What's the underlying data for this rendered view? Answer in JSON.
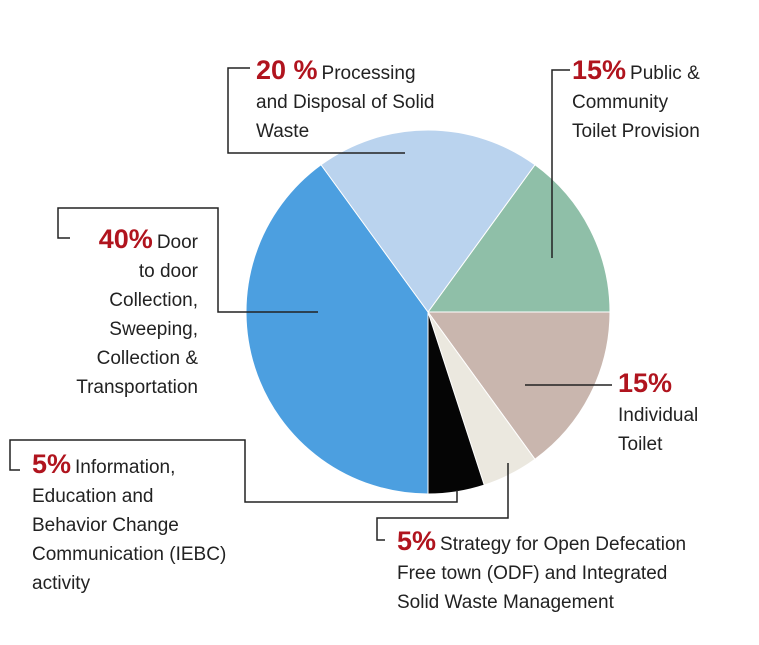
{
  "chart_data": {
    "type": "pie",
    "start": "top, clockwise from Public & Community Toilet Provision",
    "slices": [
      {
        "pct_label": "15%",
        "value": 15,
        "text": "Public & Community Toilet Provision",
        "color": "#8fbfa8"
      },
      {
        "pct_label": "15%",
        "value": 15,
        "text": "Individual Toilet",
        "color": "#c9b6ae"
      },
      {
        "pct_label": "5%",
        "value": 5,
        "text": "Strategy for Open Defecation Free town (ODF) and Integrated Solid Waste Management",
        "color": "#ebe8df"
      },
      {
        "pct_label": "5%",
        "value": 5,
        "text": "Information, Education and Behavior Change Communication (IEBC) activity",
        "color": "#050505"
      },
      {
        "pct_label": "40%",
        "value": 40,
        "text": "Door to door Collection, Sweeping, Collection & Transportation",
        "color": "#4c9fe0"
      },
      {
        "pct_label": "20 %",
        "value": 20,
        "text": "Processing and Disposal of Solid Waste",
        "color": "#bad3ee"
      }
    ]
  },
  "labels": {
    "l0": [
      "Public &",
      "Community",
      "Toilet Provision"
    ],
    "l1": [
      "",
      "Individual",
      "Toilet"
    ],
    "l2": [
      "Strategy for Open Defecation",
      "Free town (ODF) and Integrated",
      "Solid Waste Management"
    ],
    "l3": [
      "Information,",
      "Education and",
      "Behavior Change",
      "Communication (IEBC)",
      "activity"
    ],
    "l4": [
      "Door",
      "to door",
      "Collection,",
      "Sweeping,",
      "Collection &",
      "Transportation"
    ],
    "l5": [
      "Processing",
      "and Disposal of Solid",
      "Waste"
    ]
  }
}
